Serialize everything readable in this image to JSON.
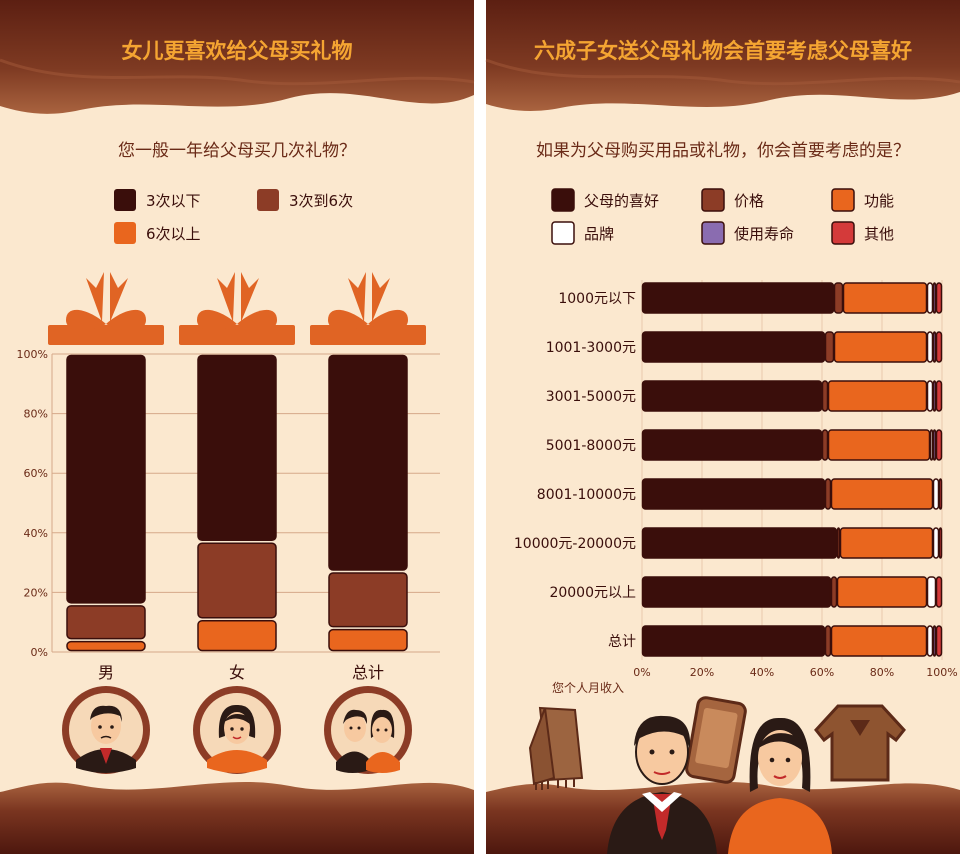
{
  "left": {
    "title": "女儿更喜欢给父母买礼物",
    "question": "您一般一年给父母买几次礼物？"
  },
  "right": {
    "title": "六成子女送父母礼物会首要考虑父母喜好",
    "question": "如果为父母购买用品或礼物，你会首要考虑的是？",
    "xlabel_note": "您个人月收入"
  },
  "colors": {
    "bg": "#fbe8cf",
    "dark": "#3a0e0b",
    "mid": "#8c3c26",
    "orange": "#e9661e",
    "white": "#ffffff",
    "purple": "#8a6cb0",
    "red": "#d43a3a",
    "title": "#f5a532",
    "text": "#6a2a17",
    "grid": "#d6a98a",
    "ribbon": "#e06424"
  },
  "chart_data": [
    {
      "type": "bar",
      "stacked": true,
      "categories": [
        "男",
        "女",
        "总计"
      ],
      "series": [
        {
          "name": "6次以上",
          "values": [
            4,
            11,
            8
          ]
        },
        {
          "name": "3次到6次",
          "values": [
            12,
            26,
            19
          ]
        },
        {
          "name": "3次以下",
          "values": [
            84,
            63,
            73
          ]
        }
      ],
      "legend": [
        "3次以下",
        "3次到6次",
        "6次以上"
      ],
      "yticks": [
        "0%",
        "20%",
        "40%",
        "60%",
        "80%",
        "100%"
      ],
      "ylim": [
        0,
        100
      ]
    },
    {
      "type": "bar",
      "orientation": "horizontal",
      "stacked": true,
      "categories": [
        "1000元以下",
        "1001-3000元",
        "3001-5000元",
        "5001-8000元",
        "8001-10000元",
        "10000元-20000元",
        "20000元以上",
        "总计"
      ],
      "series": [
        {
          "name": "父母的喜好",
          "values": [
            64,
            61,
            60,
            60,
            61,
            65,
            63,
            61
          ]
        },
        {
          "name": "价格",
          "values": [
            3,
            3,
            2,
            2,
            2,
            1,
            2,
            2
          ]
        },
        {
          "name": "功能",
          "values": [
            28,
            31,
            33,
            34,
            34,
            31,
            30,
            32
          ]
        },
        {
          "name": "品牌",
          "values": [
            2,
            2,
            2,
            1,
            2,
            2,
            3,
            2
          ]
        },
        {
          "name": "使用寿命",
          "values": [
            1,
            1,
            1,
            1,
            0,
            0,
            0,
            1
          ]
        },
        {
          "name": "其他",
          "values": [
            2,
            2,
            2,
            2,
            1,
            1,
            2,
            2
          ]
        }
      ],
      "legend": [
        "父母的喜好",
        "价格",
        "功能",
        "品牌",
        "使用寿命",
        "其他"
      ],
      "xticks": [
        "0%",
        "20%",
        "40%",
        "60%",
        "80%",
        "100%"
      ],
      "xlim": [
        0,
        100
      ]
    }
  ]
}
